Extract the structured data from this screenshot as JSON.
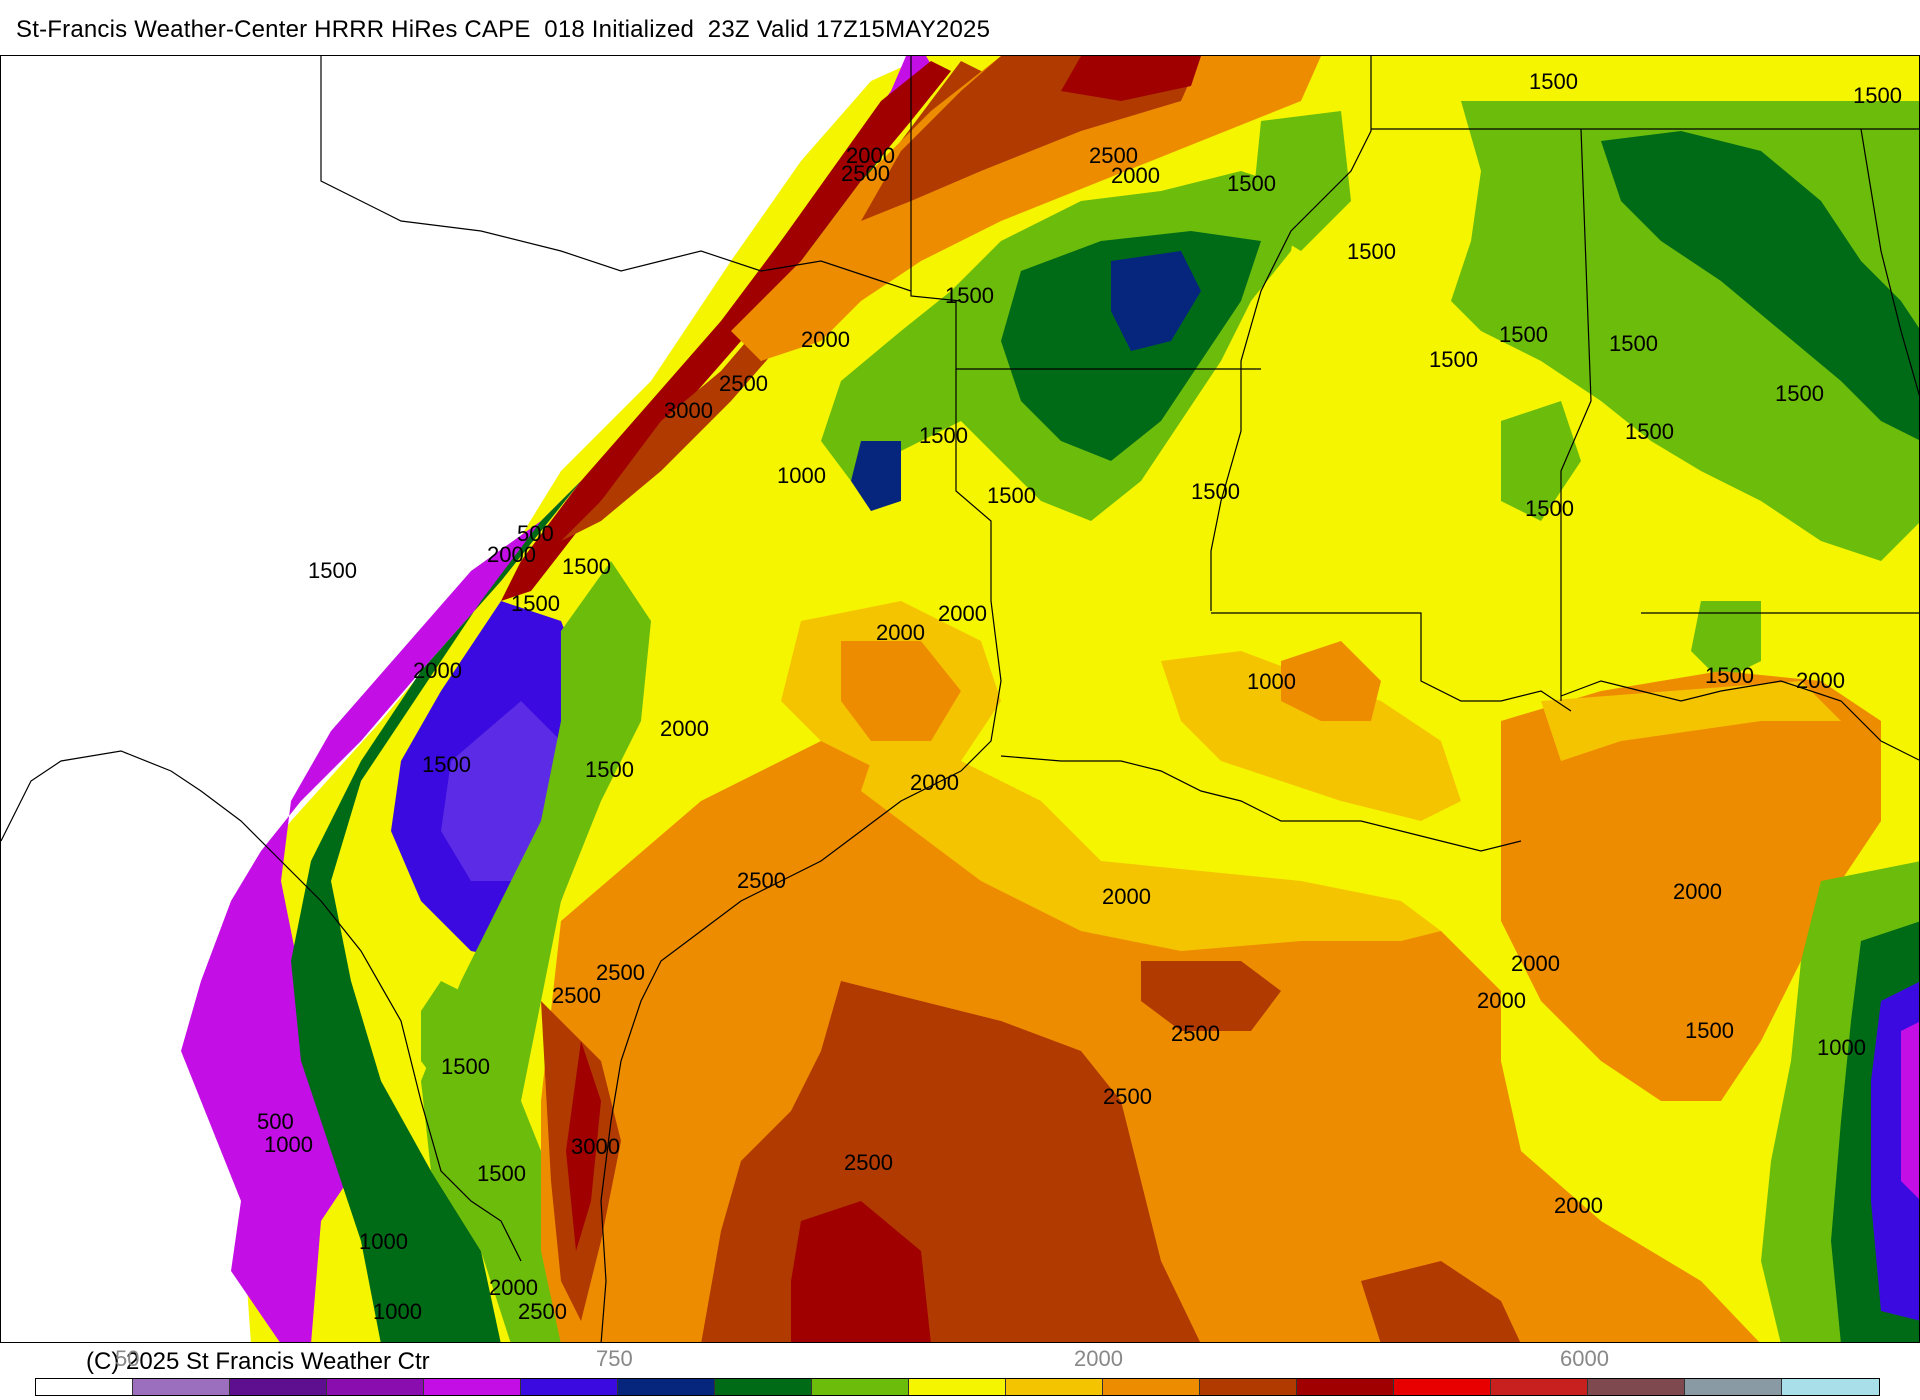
{
  "header": {
    "title": "St-Francis Weather-Center HRRR HiRes CAPE  018 Initialized  23Z Valid 17Z15MAY2025"
  },
  "map": {
    "region": "Texas / Louisiana / Gulf of Mexico",
    "contour_labels": [
      "2000",
      "2500",
      "2500",
      "2000",
      "1500",
      "1500",
      "1500",
      "2000",
      "2500",
      "3000",
      "1500",
      "1500",
      "1500",
      "1500",
      "1500",
      "1500",
      "1500",
      "1500",
      "1500",
      "1500",
      "1500",
      "1000",
      "500",
      "2000",
      "1500",
      "1500",
      "2000",
      "2000",
      "2000",
      "1000",
      "1500",
      "2000",
      "2000",
      "1500",
      "1500",
      "2000",
      "2500",
      "2500",
      "2500",
      "2000",
      "2000",
      "2000",
      "2000",
      "2500",
      "1500",
      "1000",
      "1500",
      "500",
      "1000",
      "3000",
      "2500",
      "2500",
      "1500",
      "1000",
      "2000",
      "2500",
      "1000",
      "2000",
      "1500"
    ]
  },
  "colorbar": {
    "copyright": "(C) 2025 St Francis Weather Ctr",
    "tick_labels": [
      "50",
      "750",
      "2000",
      "6000"
    ],
    "colors": [
      "#ffffff",
      "#9c6fbe",
      "#5e0f8f",
      "#8a0db0",
      "#c40ee6",
      "#3a0ae0",
      "#06267e",
      "#006b17",
      "#6cbc0c",
      "#f5f500",
      "#f5c400",
      "#ee8c00",
      "#b03a00",
      "#a00000",
      "#e80000",
      "#c8201f",
      "#7e4a4f",
      "#8a9aa5",
      "#a8dfe8"
    ]
  }
}
